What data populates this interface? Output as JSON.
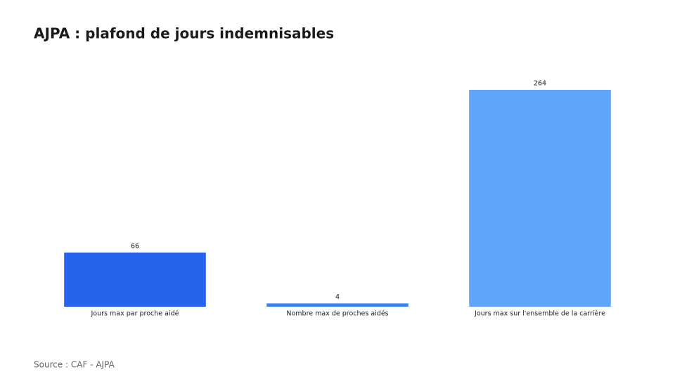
{
  "chart_data": {
    "type": "bar",
    "title": "AJPA : plafond de jours indemnisables",
    "categories": [
      "Jours max par proche aidé",
      "Nombre max de proches aidés",
      "Jours max sur l'ensemble de la carrière"
    ],
    "values": [
      66,
      4,
      264
    ],
    "colors": [
      "#2563eb",
      "#3b82f6",
      "#60a5fa"
    ],
    "source": "Source : CAF - AJPA"
  }
}
